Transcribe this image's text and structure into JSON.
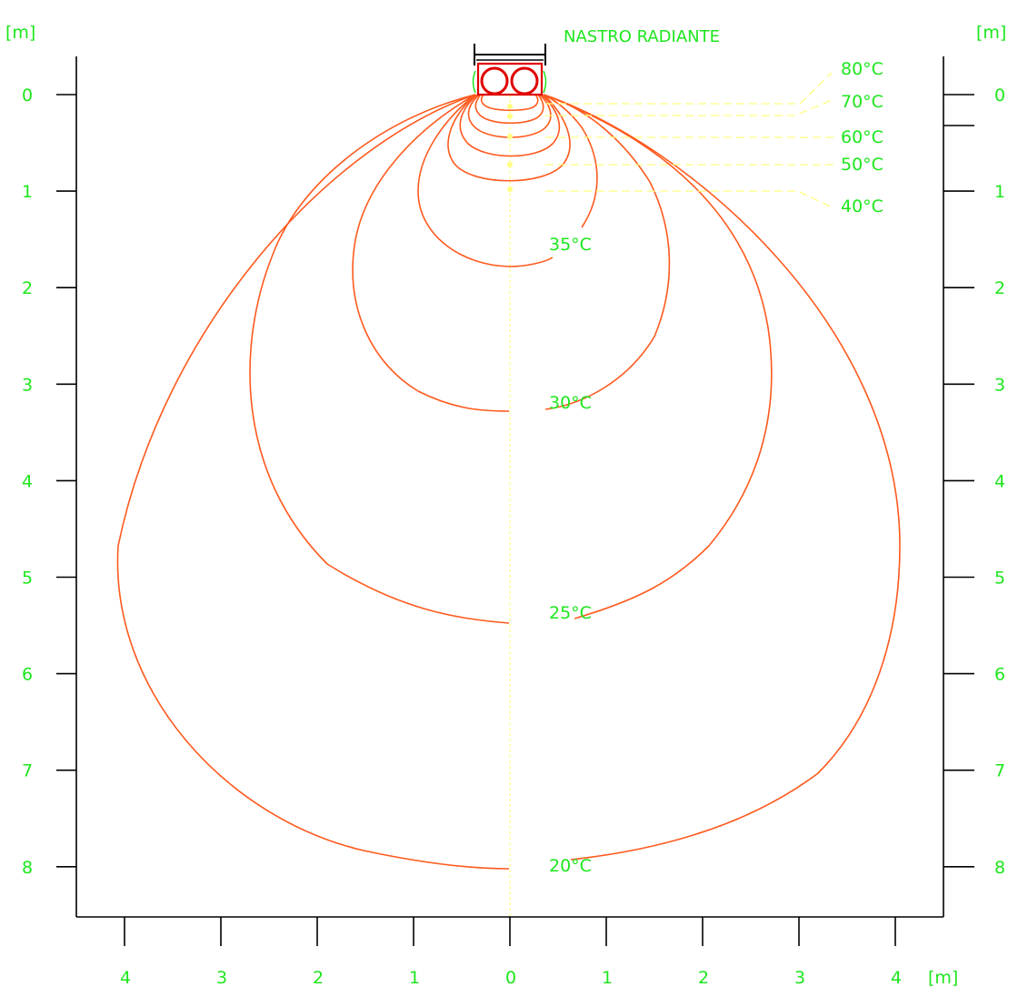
{
  "title": "NASTRO RADIANTE",
  "unit": "[m]",
  "colors": {
    "label": "#1ee61e",
    "isotherm": "#ff5a1e",
    "heater": "#e00000",
    "leader": "#ffff80",
    "axis": "#000000"
  },
  "left_axis_ticks": [
    "0",
    "1",
    "2",
    "3",
    "4",
    "5",
    "6",
    "7",
    "8"
  ],
  "right_axis_ticks": [
    "0",
    "1",
    "2",
    "3",
    "4",
    "5",
    "6",
    "7",
    "8"
  ],
  "bottom_axis_ticks": [
    "4",
    "3",
    "2",
    "1",
    "0",
    "1",
    "2",
    "3",
    "4"
  ],
  "isotherm_labels": [
    "35°C",
    "30°C",
    "25°C",
    "20°C"
  ],
  "near_source_labels": [
    "80°C",
    "70°C",
    "60°C",
    "50°C",
    "40°C"
  ],
  "isotherms": [
    {
      "label": "20°C",
      "depth_m": 8.0,
      "half_width_m": 4.05
    },
    {
      "label": "25°C",
      "depth_m": 5.45,
      "half_width_m": 2.7
    },
    {
      "label": "30°C",
      "depth_m": 3.25,
      "half_width_m": 1.65
    },
    {
      "label": "35°C",
      "depth_m": 1.75,
      "half_width_m": 0.95
    }
  ]
}
